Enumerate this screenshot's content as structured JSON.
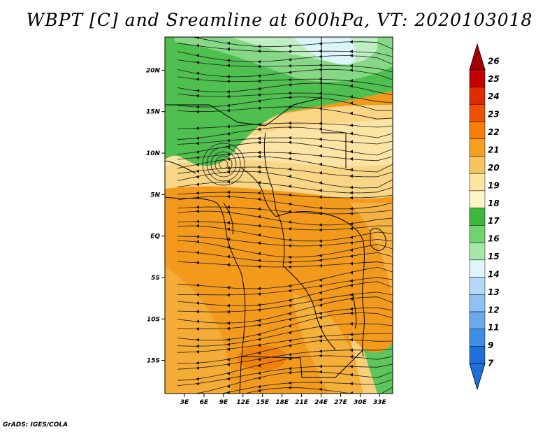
{
  "title": "WBPT [C] and Sreamline at 600hPa, VT: 2020103018",
  "credit": "GrADS: IGES/COLA",
  "map": {
    "lon_range": [
      0,
      35
    ],
    "lat_range": [
      -19,
      24
    ],
    "lat_ticks": [
      {
        "lat": 20,
        "label": "20N"
      },
      {
        "lat": 15,
        "label": "15N"
      },
      {
        "lat": 10,
        "label": "10N"
      },
      {
        "lat": 5,
        "label": "5N"
      },
      {
        "lat": 0,
        "label": "EQ"
      },
      {
        "lat": -5,
        "label": "5S"
      },
      {
        "lat": -10,
        "label": "10S"
      },
      {
        "lat": -15,
        "label": "15S"
      }
    ],
    "lon_ticks": [
      {
        "lon": 3,
        "label": "3E"
      },
      {
        "lon": 6,
        "label": "6E"
      },
      {
        "lon": 9,
        "label": "9E"
      },
      {
        "lon": 12,
        "label": "12E"
      },
      {
        "lon": 15,
        "label": "15E"
      },
      {
        "lon": 18,
        "label": "18E"
      },
      {
        "lon": 21,
        "label": "21E"
      },
      {
        "lon": 24,
        "label": "24E"
      },
      {
        "lon": 27,
        "label": "27E"
      },
      {
        "lon": 30,
        "label": "30E"
      },
      {
        "lon": 33,
        "label": "33E"
      }
    ]
  },
  "colorbar": {
    "levels": [
      {
        "label": "26",
        "color": "#a50000"
      },
      {
        "label": "25",
        "color": "#c40000"
      },
      {
        "label": "24",
        "color": "#e02a00"
      },
      {
        "label": "23",
        "color": "#f05000"
      },
      {
        "label": "22",
        "color": "#f57f0a"
      },
      {
        "label": "21",
        "color": "#f5a020"
      },
      {
        "label": "20",
        "color": "#f7c560"
      },
      {
        "label": "19",
        "color": "#fbe5a0"
      },
      {
        "label": "18",
        "color": "#fdf5c8"
      },
      {
        "label": "17",
        "color": "#3cb93c"
      },
      {
        "label": "16",
        "color": "#6fd36f"
      },
      {
        "label": "15",
        "color": "#a6e8a6"
      },
      {
        "label": "14",
        "color": "#e0f6fb"
      },
      {
        "label": "13",
        "color": "#b4d8f6"
      },
      {
        "label": "12",
        "color": "#8fc2f2"
      },
      {
        "label": "11",
        "color": "#69a9ec"
      },
      {
        "label": "9",
        "color": "#3f8ee6"
      },
      {
        "label": "7",
        "color": "#1e6fdc"
      }
    ],
    "bottom_color": "#1e6fdc"
  }
}
